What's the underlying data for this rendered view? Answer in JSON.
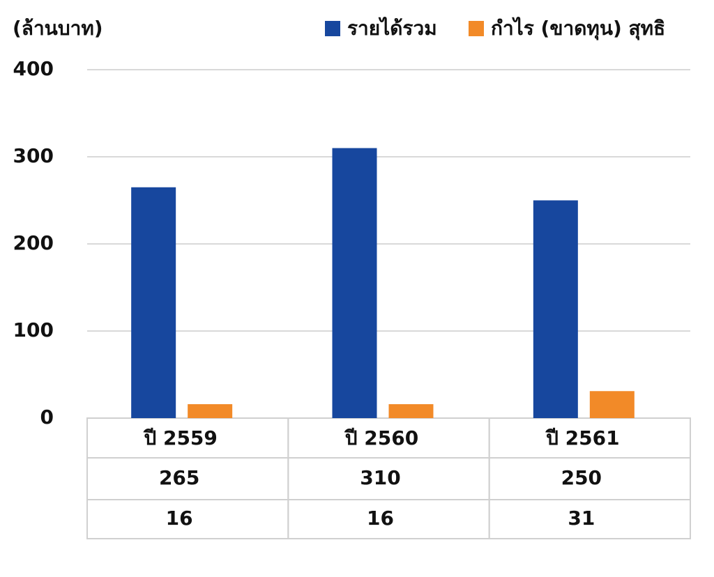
{
  "chart_data": {
    "type": "bar",
    "y_label": "(ล้านบาท)",
    "categories": [
      "ปี 2559",
      "ปี 2560",
      "ปี 2561"
    ],
    "series": [
      {
        "name": "รายได้รวม",
        "color": "#17479e",
        "values": [
          265,
          310,
          250
        ]
      },
      {
        "name": "กำไร (ขาดทุน) สุทธิ",
        "color": "#f28a28",
        "values": [
          16,
          16,
          31
        ]
      }
    ],
    "ylim": [
      0,
      400
    ],
    "yticks": [
      0,
      100,
      200,
      300,
      400
    ],
    "grid": true
  }
}
